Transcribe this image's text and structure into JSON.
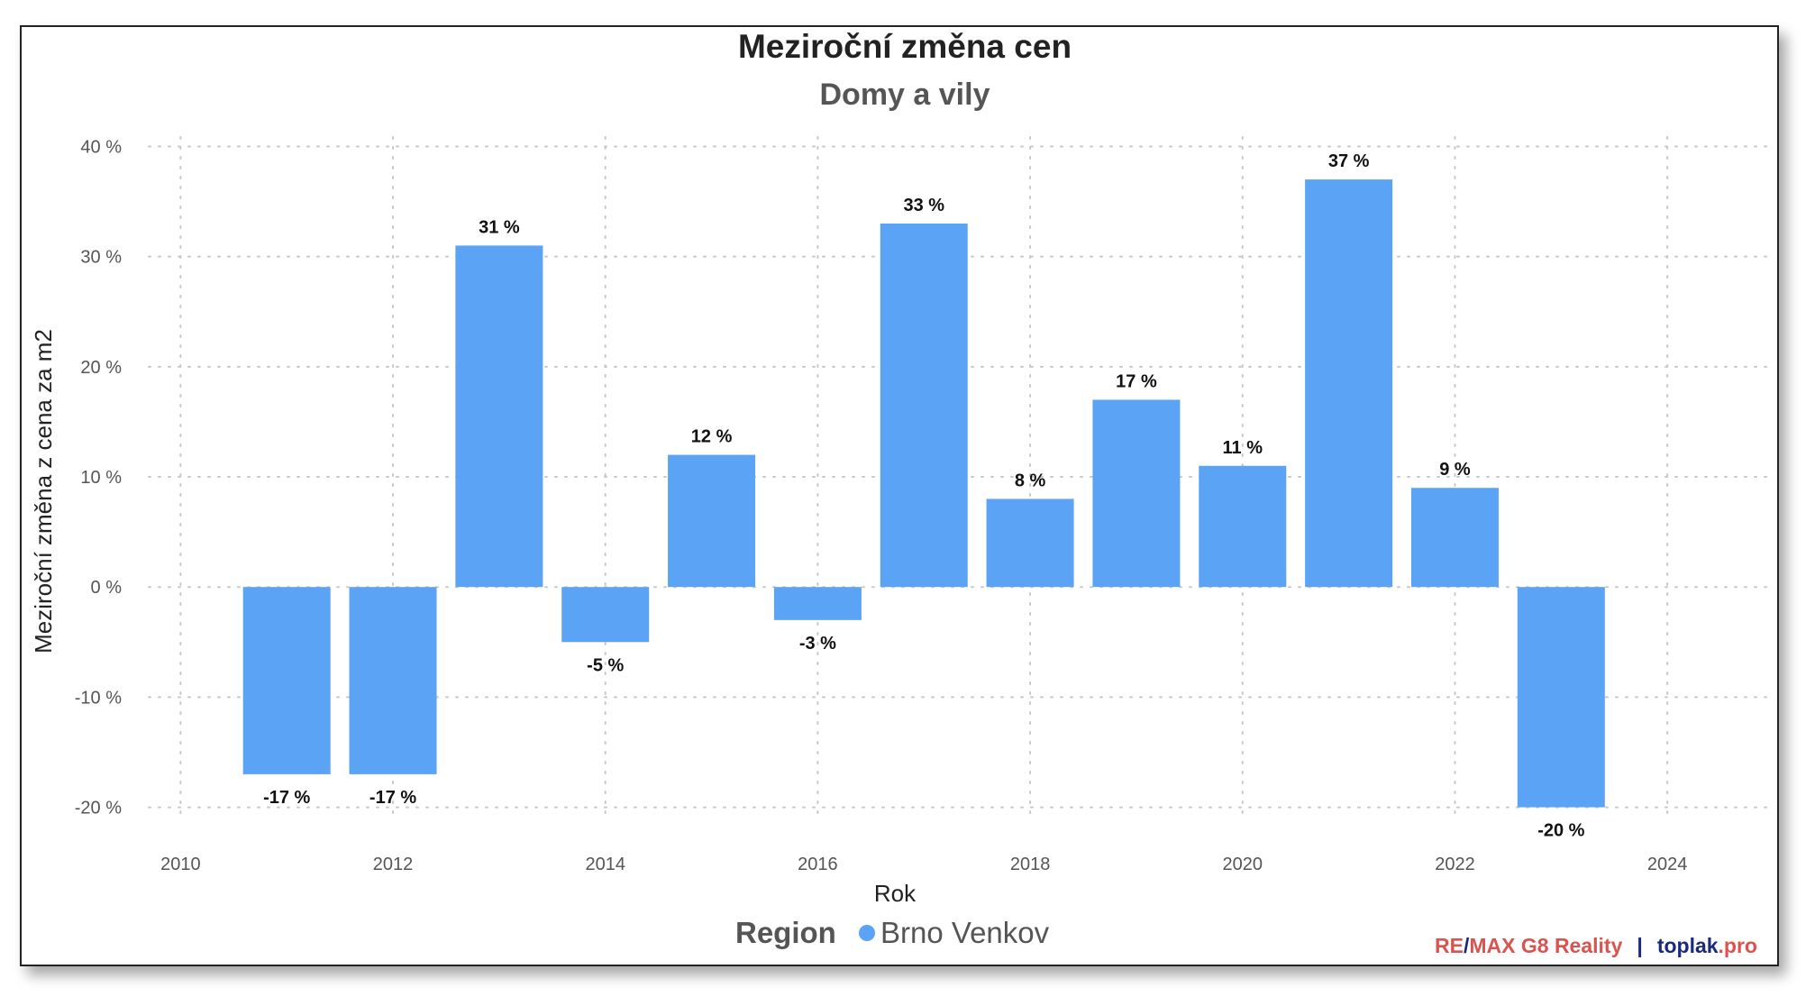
{
  "chart_data": {
    "type": "bar",
    "title": "Meziroční změna cen",
    "subtitle": "Domy a vily",
    "xlabel": "Rok",
    "ylabel": "Meziroční změna z cena za m2",
    "x": [
      2011,
      2012,
      2013,
      2014,
      2015,
      2016,
      2017,
      2018,
      2019,
      2020,
      2021,
      2022,
      2023
    ],
    "series": [
      {
        "name": "Brno Venkov",
        "color": "#5ba3f5",
        "values": [
          -17,
          -17,
          31,
          -5,
          12,
          -3,
          33,
          8,
          17,
          11,
          37,
          9,
          -20
        ],
        "data_labels": [
          "-17 %",
          "-17 %",
          "31 %",
          "-5 %",
          "12 %",
          "-3 %",
          "33 %",
          "8 %",
          "17 %",
          "11 %",
          "37 %",
          "9 %",
          "-20 %"
        ]
      }
    ],
    "xlim": [
      2009.7,
      2025.0
    ],
    "ylim": [
      -22,
      42
    ],
    "x_ticks": [
      2010,
      2012,
      2014,
      2016,
      2018,
      2020,
      2022,
      2024
    ],
    "x_tick_labels": [
      "2010",
      "2012",
      "2014",
      "2016",
      "2018",
      "2020",
      "2022",
      "2024"
    ],
    "y_ticks": [
      -20,
      -10,
      0,
      10,
      20,
      30,
      40
    ],
    "y_tick_labels": [
      "-20 %",
      "-10 %",
      "0 %",
      "10 %",
      "20 %",
      "30 %",
      "40 %"
    ],
    "grid": true,
    "legend": {
      "title": "Region",
      "position": "bottom-center"
    }
  },
  "credit": {
    "part1": "RE",
    "slash": "/",
    "part2": "MAX G8 Reality",
    "separator": "|",
    "part3": "toplak",
    "part4": ".pro",
    "color_red": "#d9534f",
    "color_navy": "#1b2a7a"
  }
}
